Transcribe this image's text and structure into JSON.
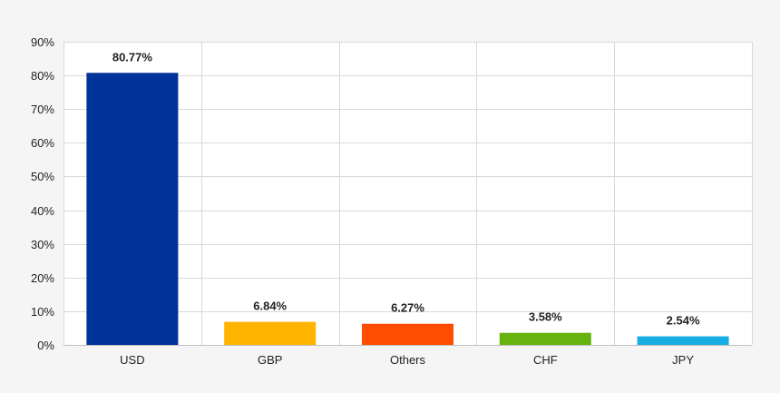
{
  "chart_data": {
    "type": "bar",
    "title": "",
    "xlabel": "",
    "ylabel": "",
    "categories": [
      "USD",
      "GBP",
      "Others",
      "CHF",
      "JPY"
    ],
    "values": [
      80.77,
      6.84,
      6.27,
      3.58,
      2.54
    ],
    "data_labels": [
      "80.77%",
      "6.84%",
      "6.27%",
      "3.58%",
      "2.54%"
    ],
    "colors": [
      "#003399",
      "#ffb400",
      "#ff4d00",
      "#66b20f",
      "#19aee3"
    ],
    "ylim": [
      0,
      90
    ],
    "y_ticks": [
      0,
      10,
      20,
      30,
      40,
      50,
      60,
      70,
      80,
      90
    ],
    "y_tick_labels": [
      "0%",
      "10%",
      "20%",
      "30%",
      "40%",
      "50%",
      "60%",
      "70%",
      "80%",
      "90%"
    ],
    "grid": true,
    "legend": "none"
  },
  "style": {
    "background": "#f5f5f5",
    "plot_background": "#ffffff",
    "grid_color": "#d9d9d9",
    "axis_color": "#bfbfbf"
  }
}
